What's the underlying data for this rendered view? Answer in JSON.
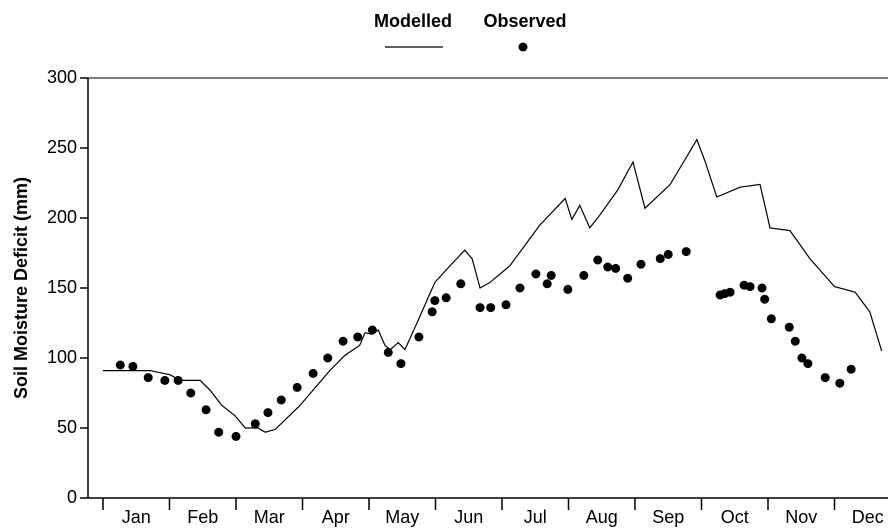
{
  "chart_data": {
    "type": "line",
    "y_label": "Soil Moisture Deficit (mm)",
    "categories": [
      "Jan",
      "Feb",
      "Mar",
      "Apr",
      "May",
      "Jun",
      "Jul",
      "Aug",
      "Sep",
      "Oct",
      "Nov",
      "Dec"
    ],
    "xlim": [
      0,
      12
    ],
    "ylim": [
      0,
      300
    ],
    "yticks": [
      0,
      50,
      100,
      150,
      200,
      250,
      300
    ],
    "series": [
      {
        "name": "Modelled",
        "color": "#000000",
        "style": "line",
        "x": [
          0,
          0.71,
          1.01,
          1.16,
          1.46,
          1.61,
          1.79,
          1.98,
          2.14,
          2.33,
          2.44,
          2.59,
          2.96,
          3.41,
          3.64,
          3.86,
          3.94,
          4.05,
          4.14,
          4.24,
          4.32,
          4.44,
          4.54,
          4.74,
          4.99,
          5.22,
          5.44,
          5.55,
          5.67,
          5.82,
          6.12,
          6.57,
          6.95,
          7.05,
          7.17,
          7.32,
          7.47,
          7.74,
          7.97,
          8.15,
          8.53,
          8.93,
          9.05,
          9.23,
          9.58,
          9.88,
          10.03,
          10.33,
          10.63,
          11.0,
          11.31,
          11.53,
          11.71
        ],
        "values": [
          91,
          91,
          88,
          84,
          84,
          77,
          66,
          59,
          50,
          50,
          47,
          49,
          66,
          91,
          102,
          109,
          118,
          117,
          120,
          109,
          106,
          111,
          106,
          127,
          154,
          166,
          177,
          171,
          150,
          154,
          166,
          195,
          214,
          199,
          209,
          193,
          202,
          220,
          240,
          207,
          224,
          256,
          241,
          215,
          222,
          224,
          193,
          191,
          171,
          151,
          147,
          133,
          105
        ]
      },
      {
        "name": "Observed",
        "color": "#000000",
        "style": "markers",
        "x": [
          0.26,
          0.45,
          0.68,
          0.93,
          1.13,
          1.32,
          1.55,
          1.74,
          2.0,
          2.29,
          2.48,
          2.68,
          2.92,
          3.16,
          3.38,
          3.61,
          3.83,
          4.05,
          4.29,
          4.48,
          4.75,
          4.95,
          4.99,
          5.16,
          5.38,
          5.67,
          5.83,
          6.06,
          6.27,
          6.51,
          6.68,
          6.74,
          6.99,
          7.23,
          7.44,
          7.59,
          7.71,
          7.89,
          8.09,
          8.38,
          8.5,
          8.77,
          9.28,
          9.35,
          9.43,
          9.64,
          9.73,
          9.91,
          9.95,
          10.05,
          10.32,
          10.41,
          10.51,
          10.6,
          10.86,
          11.08,
          11.25
        ],
        "values": [
          95,
          94,
          86,
          84,
          84,
          75,
          63,
          47,
          44,
          53,
          61,
          70,
          79,
          89,
          100,
          112,
          115,
          120,
          104,
          96,
          115,
          133,
          141,
          143,
          153,
          136,
          136,
          138,
          150,
          160,
          153,
          159,
          149,
          159,
          170,
          165,
          164,
          157,
          167,
          171,
          174,
          176,
          145,
          146,
          147,
          152,
          151,
          150,
          142,
          128,
          122,
          112,
          100,
          96,
          86,
          82,
          92
        ]
      }
    ]
  }
}
